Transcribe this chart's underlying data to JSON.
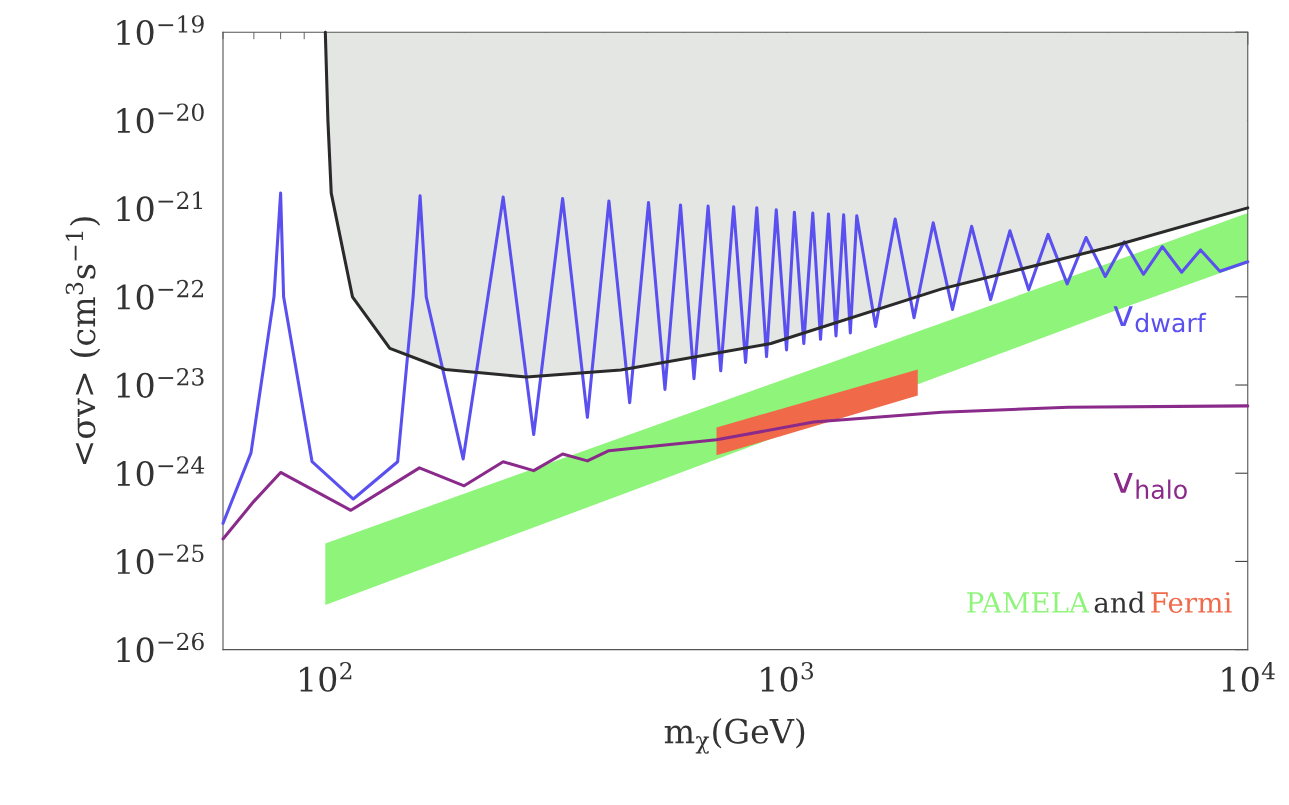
{
  "chart_data": {
    "type": "line",
    "xlabel": "m$_{χ}$(GeV)",
    "ylabel": "<σv> (cm$^{3}$s$^{−1}$)",
    "log": "xy",
    "grid": false,
    "xlim": [
      60,
      10000
    ],
    "xticks": [
      {
        "value": 100,
        "label": "10$^{2}$"
      },
      {
        "value": 1000,
        "label": "10$^{3}$"
      },
      {
        "value": 10000,
        "label": "10$^{4}$"
      }
    ],
    "ylim": [
      1e-26,
      1e-19
    ],
    "yticks": [
      {
        "value": 1e-26,
        "label": "10$^{−26}$"
      },
      {
        "value": 1e-25,
        "label": "10$^{−25}$"
      },
      {
        "value": 1e-24,
        "label": "10$^{−24}$"
      },
      {
        "value": 1e-23,
        "label": "10$^{−23}$"
      },
      {
        "value": 1e-22,
        "label": "10$^{−22}$"
      },
      {
        "value": 1e-21,
        "label": "10$^{−21}$"
      },
      {
        "value": 1e-20,
        "label": "10$^{−20}$"
      },
      {
        "value": 1e-19,
        "label": "10$^{−19}$"
      }
    ],
    "series": [
      {
        "type": "area",
        "name": "PAMELA",
        "color": "#8ef57a",
        "x": [
          100,
          5100,
          10000
        ],
        "values": [
          null,
          null,
          null
        ],
        "lower": [
          3.2e-26,
          6.8e-23,
          2.4e-22
        ],
        "upper": [
          1.6e-25,
          2.5e-22,
          8.9e-22
        ]
      },
      {
        "type": "area",
        "name": "Fermi",
        "color": "#f06a4a",
        "x": [
          705,
          1925
        ],
        "values": [
          null,
          null
        ],
        "lower": [
          1.6e-24,
          7.6e-24
        ],
        "upper": [
          3.3e-24,
          1.5e-23
        ]
      },
      {
        "type": "area",
        "color": "#e4e6e4",
        "x": [
          100,
          101.3,
          103,
          114.5,
          138,
          182,
          273,
          437,
          925,
          2170,
          5050,
          10000
        ],
        "values": [
          null,
          null,
          null,
          null,
          null,
          null,
          null,
          null,
          null,
          null,
          null,
          null
        ],
        "lower": [
          1e-19,
          1e-20,
          1.5e-21,
          1e-22,
          2.6e-23,
          1.5e-23,
          1.23e-23,
          1.48e-23,
          2.95e-23,
          1.23e-22,
          3.7e-22,
          1.02e-21
        ],
        "upper": [
          1e-19,
          1e-19,
          1e-19,
          1e-19,
          1e-19,
          1e-19,
          1e-19,
          1e-19,
          1e-19,
          1e-19,
          1e-19,
          1e-19
        ]
      },
      {
        "color": "#2a2a2a",
        "x": [
          100,
          101.3,
          103,
          114.5,
          138,
          182,
          273,
          437,
          925,
          2170,
          5050,
          10000
        ],
        "values": [
          1e-19,
          1e-20,
          1.5e-21,
          1e-22,
          2.6e-23,
          1.5e-23,
          1.23e-23,
          1.48e-23,
          2.95e-23,
          1.23e-22,
          3.7e-22,
          1.02e-21
        ]
      },
      {
        "name": "v$_{dwarf}$",
        "color": "#5a50f0",
        "x": [
          60,
          69,
          77.4,
          80,
          81.2,
          93.6,
          115,
          143.5,
          155,
          160.5,
          165.5,
          199,
          243,
          283,
          327,
          370,
          412,
          457,
          502,
          545,
          589,
          630,
          676,
          720,
          768,
          815,
          862,
          905,
          950,
          1000,
          1040,
          1090,
          1140,
          1185,
          1233,
          1280,
          1330,
          1375,
          1420,
          1560,
          1720,
          1890,
          2080,
          2290,
          2520,
          2770,
          3050,
          3350,
          3690,
          4060,
          4460,
          4910,
          5400,
          5940,
          6530,
          7190,
          7900,
          8700,
          10000
        ],
        "values": [
          2.7e-25,
          1.7e-24,
          1e-22,
          1.5e-21,
          1e-22,
          1.35e-24,
          5.1e-25,
          1.35e-24,
          1e-22,
          1.4e-21,
          1e-22,
          1.45e-24,
          1.35e-21,
          2.75e-24,
          1.3e-21,
          4.3e-24,
          1.22e-21,
          6.3e-24,
          1.17e-21,
          8.9e-24,
          1.1e-21,
          1.18e-23,
          1.07e-21,
          1.45e-23,
          1.05e-21,
          1.8e-23,
          1.02e-21,
          2.1e-23,
          9.7e-22,
          2.5e-23,
          9.1e-22,
          2.95e-23,
          8.9e-22,
          3.3e-23,
          8.7e-22,
          3.6e-23,
          8.5e-22,
          3.9e-23,
          8.3e-22,
          4.6e-23,
          7.6e-22,
          5.8e-23,
          6.9e-22,
          7.2e-23,
          6.3e-22,
          9.3e-23,
          5.6e-22,
          1.2e-22,
          5.1e-22,
          1.4e-22,
          4.7e-22,
          1.7e-22,
          4.2e-22,
          1.8e-22,
          3.7e-22,
          1.9e-22,
          3.4e-22,
          1.95e-22,
          2.5e-22
        ]
      },
      {
        "name": "v$_{halo}$",
        "color": "#8a2a8a",
        "x": [
          60,
          70,
          80,
          113.6,
          160,
          200,
          243,
          283,
          327,
          370,
          412,
          705,
          1145,
          2170,
          4080,
          10000
        ],
        "values": [
          1.8e-25,
          4.8e-25,
          1.02e-24,
          3.8e-25,
          1.15e-24,
          7.2e-25,
          1.35e-24,
          1.07e-24,
          1.65e-24,
          1.38e-24,
          1.8e-24,
          2.4e-24,
          3.8e-24,
          4.9e-24,
          5.6e-24,
          5.8e-24
        ]
      }
    ],
    "legend": "bottom right",
    "annotations": [
      "and"
    ]
  }
}
